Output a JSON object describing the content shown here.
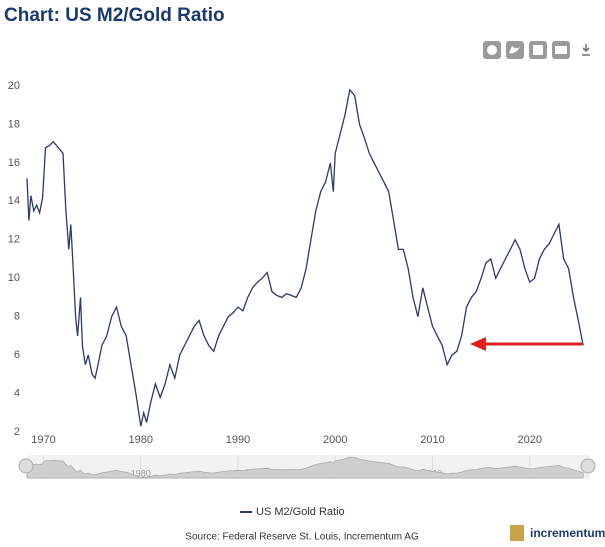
{
  "chart_data": {
    "type": "line",
    "title": "Chart: US M2/Gold Ratio",
    "source": "Source: Federal Reserve St. Louis, Incrementum AG",
    "brand": "incrementum",
    "xlim": [
      1968.3,
      2026.2
    ],
    "xticks": [
      1970,
      1980,
      1990,
      2000,
      2010,
      2020
    ],
    "ylim": [
      2,
      20
    ],
    "yticks": [
      2,
      4,
      6,
      8,
      10,
      12,
      14,
      16,
      18,
      20
    ],
    "grid": false,
    "x": [
      1968.3,
      1968.5,
      1968.7,
      1969,
      1969.3,
      1969.6,
      1969.9,
      1970.2,
      1970.6,
      1971,
      1971.5,
      1972,
      1972.3,
      1972.6,
      1972.8,
      1973,
      1973.3,
      1973.5,
      1973.8,
      1974,
      1974.3,
      1974.6,
      1975,
      1975.3,
      1975.6,
      1976,
      1976.5,
      1977,
      1977.5,
      1978,
      1978.5,
      1979,
      1979.5,
      1980,
      1980.3,
      1980.6,
      1981,
      1981.5,
      1982,
      1982.5,
      1983,
      1983.5,
      1984,
      1984.5,
      1985,
      1985.5,
      1986,
      1986.5,
      1987,
      1987.5,
      1988,
      1988.5,
      1989,
      1989.5,
      1990,
      1990.5,
      1991,
      1991.5,
      1992,
      1992.5,
      1993,
      1993.5,
      1994,
      1994.5,
      1995,
      1995.5,
      1996,
      1996.5,
      1997,
      1997.5,
      1998,
      1998.5,
      1999,
      1999.5,
      1999.8,
      2000,
      2000.5,
      2001,
      2001.5,
      2002,
      2002.5,
      2003,
      2003.5,
      2004,
      2004.5,
      2005,
      2005.5,
      2006,
      2006.5,
      2007,
      2007.5,
      2008,
      2008.5,
      2009,
      2009.5,
      2010,
      2010.5,
      2011,
      2011.5,
      2012,
      2012.5,
      2013,
      2013.5,
      2014,
      2014.5,
      2015,
      2015.5,
      2016,
      2016.5,
      2017,
      2017.5,
      2018,
      2018.5,
      2019,
      2019.5,
      2020,
      2020.5,
      2021,
      2021.5,
      2022,
      2022.5,
      2023,
      2023.5,
      2024,
      2024.5,
      2025,
      2025.5
    ],
    "series": [
      {
        "name": "US M2/Gold Ratio",
        "color": "#2b3a67",
        "values": [
          15.2,
          13,
          14.3,
          13.5,
          13.8,
          13.4,
          14.2,
          16.8,
          16.9,
          17.1,
          16.8,
          16.5,
          13.5,
          11.5,
          12.8,
          11,
          8,
          7,
          9,
          6.5,
          5.5,
          6,
          5,
          4.8,
          5.5,
          6.5,
          7,
          8,
          8.5,
          7.5,
          7,
          5.5,
          4,
          2.3,
          3,
          2.5,
          3.5,
          4.5,
          3.8,
          4.5,
          5.5,
          4.8,
          6,
          6.5,
          7,
          7.5,
          7.8,
          7,
          6.5,
          6.2,
          7,
          7.5,
          8,
          8.2,
          8.5,
          8.3,
          9,
          9.5,
          9.8,
          10,
          10.3,
          9.3,
          9.1,
          9,
          9.2,
          9.1,
          9,
          9.5,
          10.5,
          12,
          13.5,
          14.5,
          15,
          16,
          14.5,
          16.5,
          17.5,
          18.5,
          19.8,
          19.5,
          18,
          17.3,
          16.5,
          16,
          15.5,
          15,
          14.5,
          13,
          11.5,
          11.5,
          10.5,
          9,
          8,
          9.5,
          8.5,
          7.5,
          7,
          6.5,
          5.5,
          6,
          6.2,
          7,
          8.5,
          9,
          9.3,
          10,
          10.8,
          11,
          10,
          10.5,
          11,
          11.5,
          12,
          11.5,
          10.5,
          9.8,
          10,
          11,
          11.5,
          11.8,
          12.3,
          12.8,
          11,
          10.5,
          9,
          7.8,
          6.5
        ]
      }
    ]
  }
}
